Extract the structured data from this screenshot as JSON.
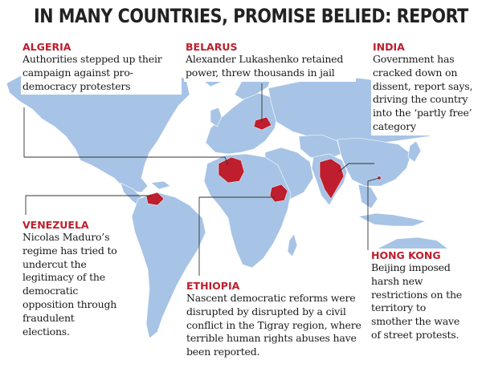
{
  "title": "IN MANY COUNTRIES, PROMISE BELIED: REPORT",
  "callouts": {
    "algeria": {
      "country": "ALGERIA",
      "text": "Authorities stepped up their campaign against pro-democracy protesters"
    },
    "belarus": {
      "country": "BELARUS",
      "text": "Alexander Lukashenko retained power, threw thousands in jail"
    },
    "india": {
      "country": "INDIA",
      "text": "Government has cracked down on dissent, report says, driving the country into the ‘partly free’ category"
    },
    "venezuela": {
      "country": "VENEZUELA",
      "text": "Nicolas Maduro’s regime has tried to undercut the legitimacy of the democratic opposition through fraudulent elections."
    },
    "ethiopia": {
      "country": "ETHIOPIA",
      "text": "Nascent democratic reforms were disrupted by disrupted by a civil conflict in the Tigray region, where terrible human rights abuses have been reported."
    },
    "hongkong": {
      "country": "HONG KONG",
      "text": "Beijing imposed harsh new restrictions on the territory to smother the wave of street protests."
    }
  },
  "colors": {
    "land": "#a7c4e6",
    "highlight": "#be1e2d",
    "title": "#222222"
  }
}
